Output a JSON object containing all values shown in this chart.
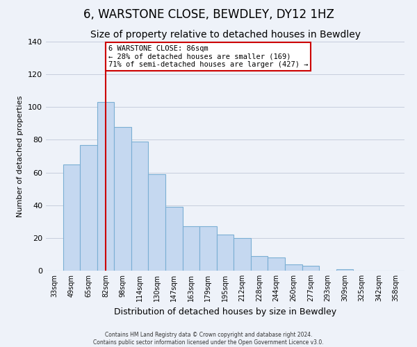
{
  "title": "6, WARSTONE CLOSE, BEWDLEY, DY12 1HZ",
  "subtitle": "Size of property relative to detached houses in Bewdley",
  "xlabel": "Distribution of detached houses by size in Bewdley",
  "ylabel": "Number of detached properties",
  "categories": [
    "33sqm",
    "49sqm",
    "65sqm",
    "82sqm",
    "98sqm",
    "114sqm",
    "130sqm",
    "147sqm",
    "163sqm",
    "179sqm",
    "195sqm",
    "212sqm",
    "228sqm",
    "244sqm",
    "260sqm",
    "277sqm",
    "293sqm",
    "309sqm",
    "325sqm",
    "342sqm",
    "358sqm"
  ],
  "values": [
    0,
    65,
    77,
    103,
    88,
    79,
    59,
    39,
    27,
    27,
    22,
    20,
    9,
    8,
    4,
    3,
    0,
    1,
    0,
    0,
    0
  ],
  "bar_color": "#c5d8f0",
  "bar_edge_color": "#7bafd4",
  "ylim": [
    0,
    140
  ],
  "yticks": [
    0,
    20,
    40,
    60,
    80,
    100,
    120,
    140
  ],
  "vline_x_index": 3,
  "vline_color": "#cc0000",
  "annotation_title": "6 WARSTONE CLOSE: 86sqm",
  "annotation_line1": "← 28% of detached houses are smaller (169)",
  "annotation_line2": "71% of semi-detached houses are larger (427) →",
  "annotation_box_color": "#cc0000",
  "footer_line1": "Contains HM Land Registry data © Crown copyright and database right 2024.",
  "footer_line2": "Contains public sector information licensed under the Open Government Licence v3.0.",
  "bg_color": "#eef2f9",
  "title_fontsize": 12,
  "subtitle_fontsize": 10
}
